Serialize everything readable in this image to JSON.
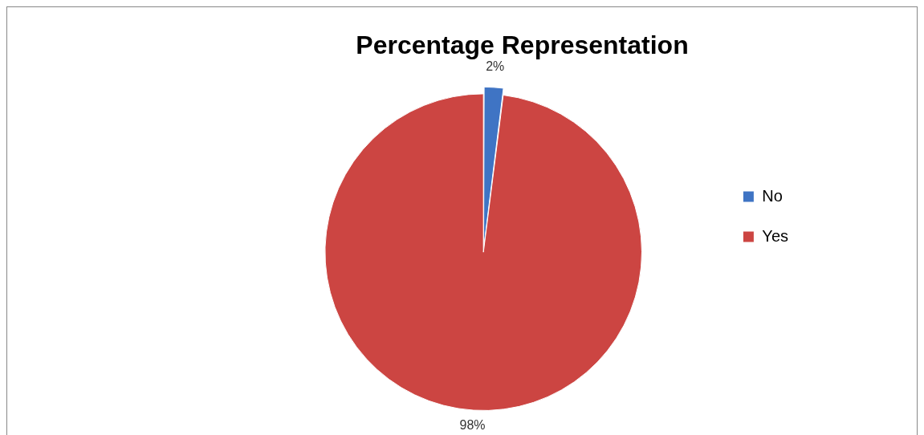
{
  "chart_data": {
    "type": "pie",
    "title": "Percentage Representation",
    "categories": [
      "No",
      "Yes"
    ],
    "values": [
      2,
      98
    ],
    "colors": [
      "#3f74c4",
      "#cc4542"
    ],
    "value_labels": [
      "2%",
      "98%"
    ],
    "legend": "right"
  }
}
